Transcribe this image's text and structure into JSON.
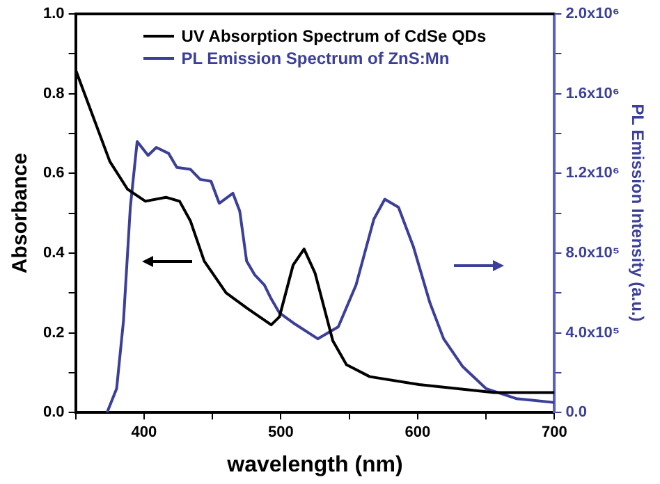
{
  "chart_data": {
    "type": "line",
    "xlabel": "wavelength (nm)",
    "ylabel": "Absorbance",
    "y2label": "PL Emission Intensity (a.u.)",
    "xlim": [
      350,
      700
    ],
    "xticks": [
      {
        "value": 350,
        "label": null
      },
      {
        "value": 400,
        "label": "400"
      },
      {
        "value": 450,
        "label": null
      },
      {
        "value": 500,
        "label": "500"
      },
      {
        "value": 550,
        "label": null
      },
      {
        "value": 600,
        "label": "600"
      },
      {
        "value": 650,
        "label": null
      },
      {
        "value": 700,
        "label": "700"
      }
    ],
    "ylim": [
      0,
      1
    ],
    "yticks": [
      {
        "value": 0,
        "label": "0.0"
      },
      {
        "value": 0.1,
        "label": null
      },
      {
        "value": 0.2,
        "label": "0.2"
      },
      {
        "value": 0.3,
        "label": null
      },
      {
        "value": 0.4,
        "label": "0.4"
      },
      {
        "value": 0.5,
        "label": null
      },
      {
        "value": 0.6,
        "label": "0.6"
      },
      {
        "value": 0.7,
        "label": null
      },
      {
        "value": 0.8,
        "label": "0.8"
      },
      {
        "value": 0.9,
        "label": null
      },
      {
        "value": 1,
        "label": "1.0"
      }
    ],
    "y2lim": [
      0,
      2000000
    ],
    "y2ticks": [
      {
        "value": 0,
        "label": "0.0"
      },
      {
        "value": 200000,
        "label": null
      },
      {
        "value": 400000,
        "label": "4.0x10⁵"
      },
      {
        "value": 600000,
        "label": null
      },
      {
        "value": 800000,
        "label": "8.0x10⁵"
      },
      {
        "value": 1000000,
        "label": null
      },
      {
        "value": 1200000,
        "label": "1.2x10⁶"
      },
      {
        "value": 1400000,
        "label": null
      },
      {
        "value": 1600000,
        "label": "1.6x10⁶"
      },
      {
        "value": 1800000,
        "label": null
      },
      {
        "value": 2000000,
        "label": "2.0x10⁶"
      }
    ],
    "grid": false,
    "legend": "top",
    "marker": "none",
    "line_style": "solid",
    "series": [
      {
        "name": "UV Absorption Spectrum of CdSe QDs",
        "color": "#000000",
        "x": [
          350,
          375,
          388,
          401,
          416,
          426,
          434,
          444,
          460,
          476,
          493,
          499,
          509,
          517,
          525,
          538,
          548,
          565,
          601,
          656,
          700
        ],
        "values": [
          0.86,
          0.63,
          0.56,
          0.53,
          0.54,
          0.53,
          0.48,
          0.38,
          0.3,
          0.26,
          0.22,
          0.24,
          0.37,
          0.41,
          0.35,
          0.18,
          0.12,
          0.09,
          0.07,
          0.05,
          0.05
        ]
      },
      {
        "name": "PL Emission Spectrum of ZnS:Mn",
        "color": "#3b3f98",
        "axis": "y2",
        "x": [
          373,
          380,
          385,
          390,
          395,
          403,
          409,
          418,
          424,
          434,
          441,
          449,
          455,
          465,
          470,
          475,
          481,
          488,
          493,
          499,
          509,
          527,
          542,
          555,
          568,
          576,
          586,
          597,
          609,
          619,
          633,
          650,
          672,
          700
        ],
        "values": [
          0,
          120000,
          460000,
          1030000,
          1360000,
          1290000,
          1330000,
          1300000,
          1230000,
          1220000,
          1170000,
          1160000,
          1050000,
          1100000,
          1010000,
          760000,
          690000,
          640000,
          570000,
          500000,
          450000,
          370000,
          430000,
          640000,
          970000,
          1070000,
          1030000,
          830000,
          550000,
          370000,
          230000,
          120000,
          70000,
          50000
        ]
      }
    ]
  }
}
